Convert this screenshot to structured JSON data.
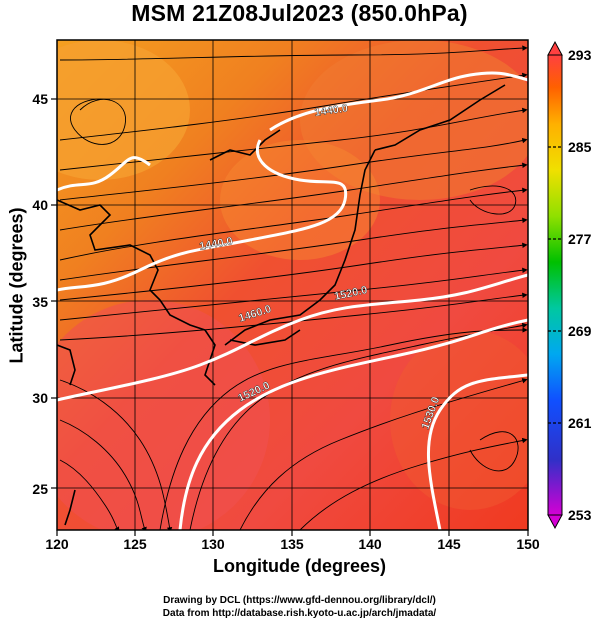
{
  "title": "MSM 21Z08Jul2023 (850.0hPa)",
  "map": {
    "x_axis_label": "Longitude (degrees)",
    "y_axis_label": "Latitude  (degrees)",
    "lon_range": [
      120,
      150
    ],
    "lat_range": [
      22.5,
      48
    ],
    "x_ticks": [
      "120",
      "125",
      "130",
      "135",
      "140",
      "145",
      "150"
    ],
    "y_ticks": [
      "25",
      "30",
      "35",
      "40",
      "45"
    ],
    "contour_labels": [
      "1440.0",
      "1440.0",
      "1460.0",
      "1520.0",
      "1520.0",
      "1530.0"
    ],
    "colorbar": {
      "ticks": [
        "293",
        "285",
        "277",
        "269",
        "261",
        "253"
      ],
      "range": [
        253,
        293
      ],
      "colors": [
        "#d400d4",
        "#5050d8",
        "#1010ff",
        "#00a0ff",
        "#00c8a0",
        "#00c000",
        "#a0e000",
        "#f0e000",
        "#ffb000",
        "#ff7000",
        "#ff3000",
        "#ff4040"
      ]
    }
  },
  "credits": {
    "line1": "Drawing by DCL (https://www.gfd-dennou.org/library/dcl/)",
    "line2": "Data from http://database.rish.kyoto-u.ac.jp/arch/jmadata/"
  }
}
